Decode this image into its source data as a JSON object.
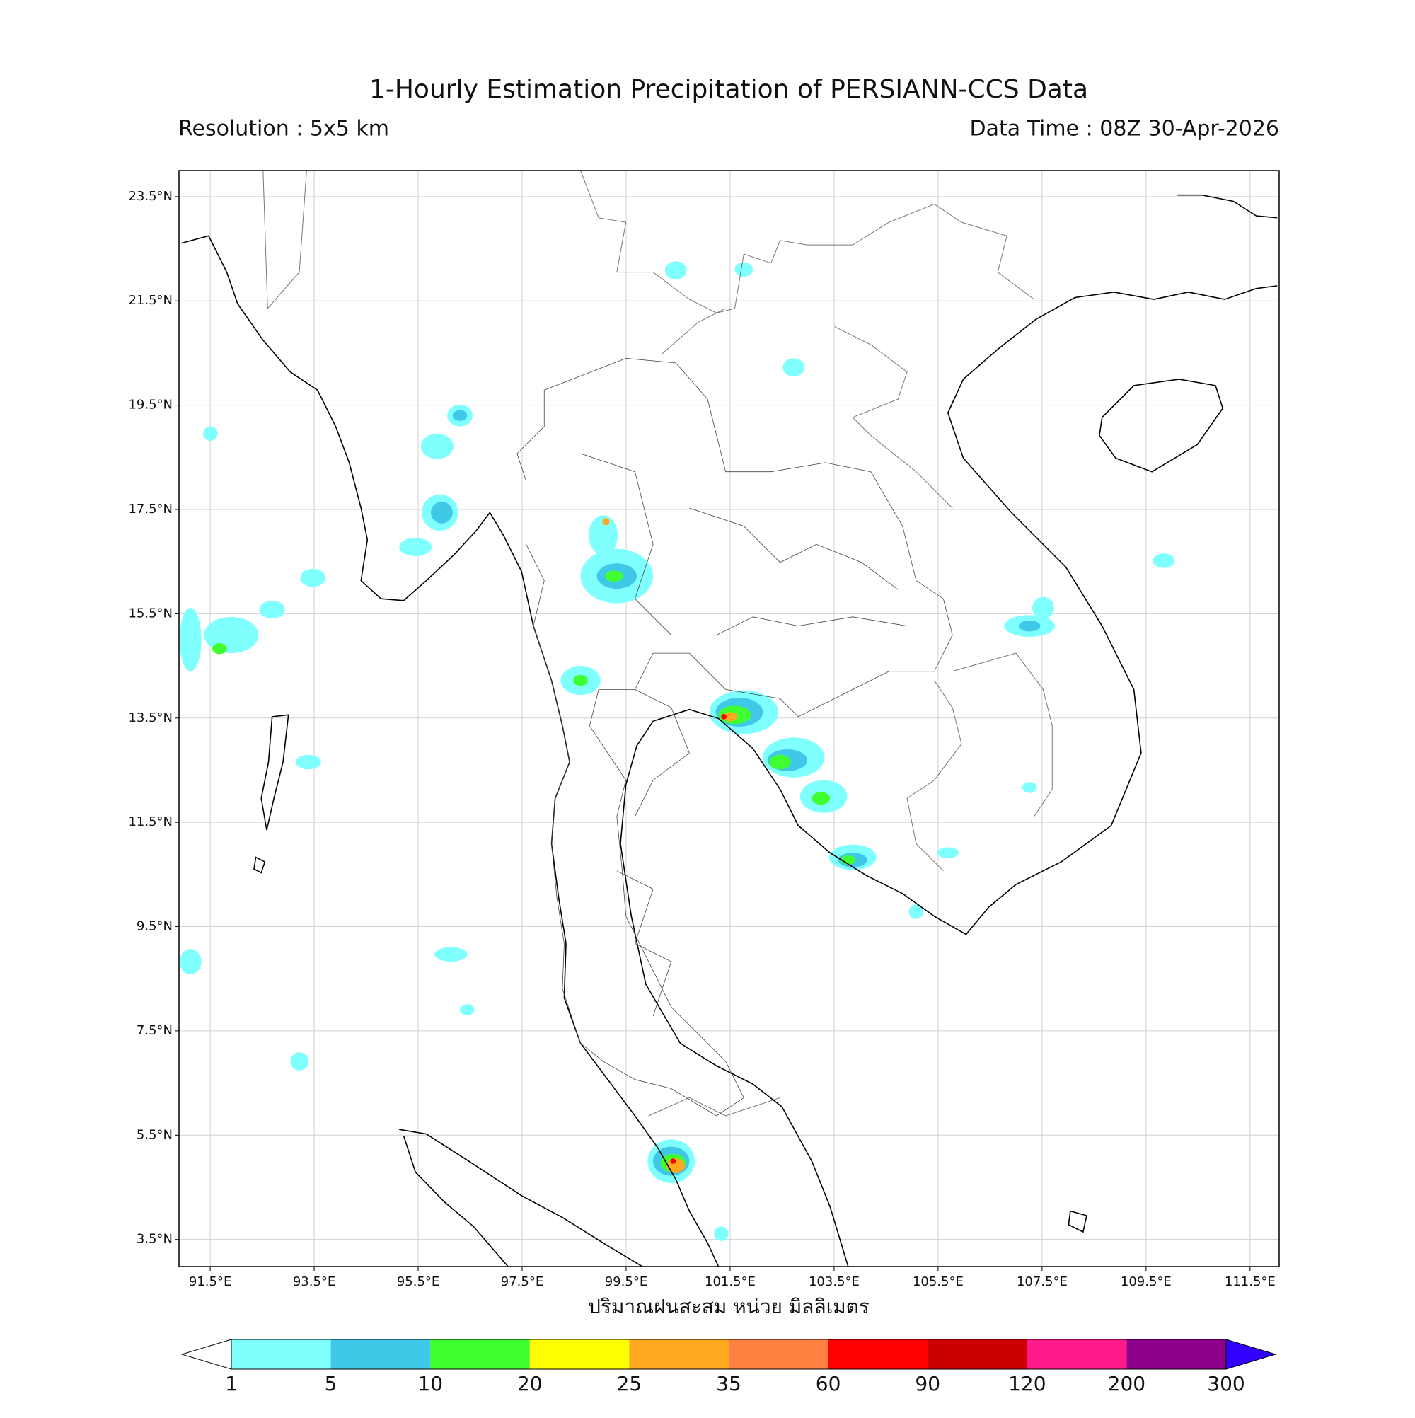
{
  "header": {
    "title": "1-Hourly Estimation Precipitation of PERSIANN-CCS Data",
    "resolution": "Resolution : 5x5 km",
    "data_time": "Data Time : 08Z 30-Apr-2026"
  },
  "map": {
    "xlim": [
      90.9,
      112.06
    ],
    "ylim": [
      2.98,
      24.0
    ],
    "xticks": [
      {
        "value": 91.5,
        "label": "91.5°E"
      },
      {
        "value": 93.5,
        "label": "93.5°E"
      },
      {
        "value": 95.5,
        "label": "95.5°E"
      },
      {
        "value": 97.5,
        "label": "97.5°E"
      },
      {
        "value": 99.5,
        "label": "99.5°E"
      },
      {
        "value": 101.5,
        "label": "101.5°E"
      },
      {
        "value": 103.5,
        "label": "103.5°E"
      },
      {
        "value": 105.5,
        "label": "105.5°E"
      },
      {
        "value": 107.5,
        "label": "107.5°E"
      },
      {
        "value": 109.5,
        "label": "109.5°E"
      },
      {
        "value": 111.5,
        "label": "111.5°E"
      }
    ],
    "yticks": [
      {
        "value": 3.5,
        "label": "3.5°N"
      },
      {
        "value": 5.5,
        "label": "5.5°N"
      },
      {
        "value": 7.5,
        "label": "7.5°N"
      },
      {
        "value": 9.5,
        "label": "9.5°N"
      },
      {
        "value": 11.5,
        "label": "11.5°N"
      },
      {
        "value": 13.5,
        "label": "13.5°N"
      },
      {
        "value": 15.5,
        "label": "15.5°N"
      },
      {
        "value": 17.5,
        "label": "17.5°N"
      },
      {
        "value": 19.5,
        "label": "19.5°N"
      },
      {
        "value": 21.5,
        "label": "21.5°N"
      },
      {
        "value": 23.5,
        "label": "23.5°N"
      }
    ],
    "grid": true,
    "xlabel": "ปริมาณฝนสะสม หน่วย มิลลิเมตร"
  },
  "colorbar": {
    "levels": [
      1,
      5,
      10,
      20,
      25,
      35,
      60,
      90,
      120,
      200,
      300
    ],
    "colors": [
      "#80ffff",
      "#40c8e8",
      "#40ff30",
      "#ffff00",
      "#ffa820",
      "#ff8040",
      "#ff0000",
      "#cc0000",
      "#ff1a8c",
      "#8c008c"
    ],
    "under_color": "#ffffff",
    "over_color": "#3300ff"
  }
}
